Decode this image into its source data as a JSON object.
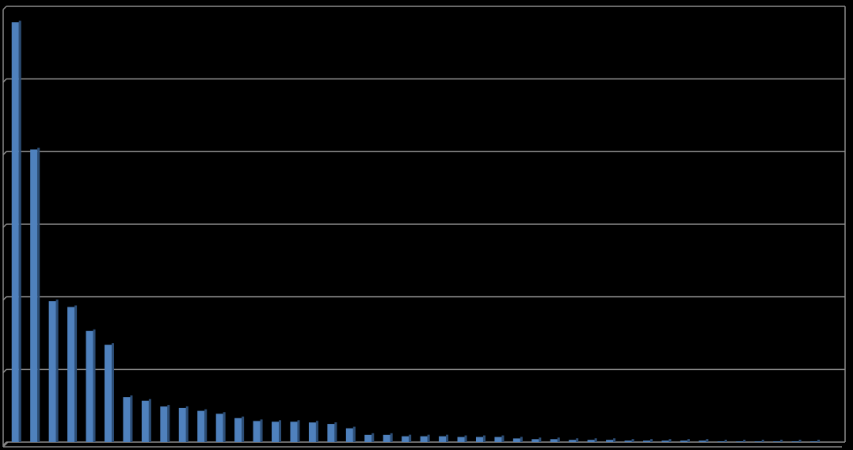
{
  "chart_data": {
    "type": "bar",
    "values": [
      5.78,
      4.03,
      1.94,
      1.86,
      1.53,
      1.34,
      0.62,
      0.57,
      0.49,
      0.47,
      0.43,
      0.39,
      0.33,
      0.29,
      0.28,
      0.28,
      0.27,
      0.25,
      0.19,
      0.1,
      0.1,
      0.08,
      0.08,
      0.08,
      0.07,
      0.07,
      0.07,
      0.05,
      0.04,
      0.04,
      0.03,
      0.03,
      0.03,
      0.02,
      0.02,
      0.02,
      0.02,
      0.02,
      0.01,
      0.01,
      0.01,
      0.01,
      0.01,
      0.01
    ],
    "color": "#4f81bd",
    "ylim": [
      0,
      6
    ],
    "yticks": [
      0,
      1,
      2,
      3,
      4,
      5,
      6
    ],
    "grid": true
  }
}
